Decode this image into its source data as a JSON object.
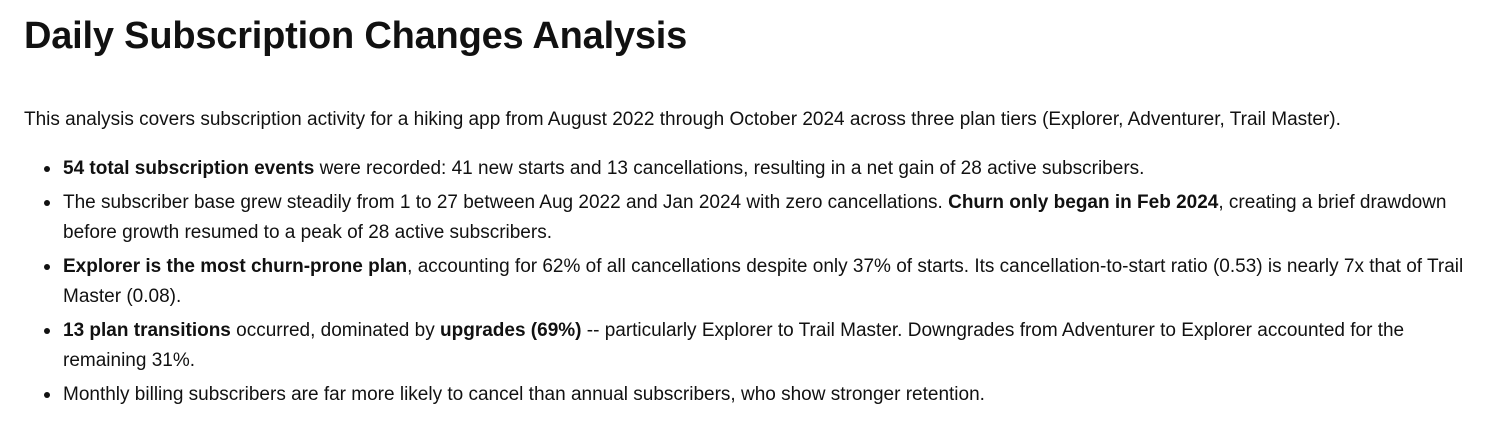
{
  "document": {
    "title": "Daily Subscription Changes Analysis",
    "intro": "This analysis covers subscription activity for a hiking app from August 2022 through October 2024 across three plan tiers (Explorer, Adventurer, Trail Master).",
    "bullets": [
      {
        "bold1": "54 total subscription events",
        "text1": " were recorded: 41 new starts and 13 cancellations, resulting in a net gain of 28 active subscribers."
      },
      {
        "text1": "The subscriber base grew steadily from 1 to 27 between Aug 2022 and Jan 2024 with zero cancellations. ",
        "bold1": "Churn only began in Feb 2024",
        "text2": ", creating a brief drawdown before growth resumed to a peak of 28 active subscribers."
      },
      {
        "bold1": "Explorer is the most churn-prone plan",
        "text1": ", accounting for 62% of all cancellations despite only 37% of starts. Its cancellation-to-start ratio (0.53) is nearly 7x that of Trail Master (0.08)."
      },
      {
        "bold1": "13 plan transitions",
        "text1": " occurred, dominated by ",
        "bold2": "upgrades (69%)",
        "text2": " -- particularly Explorer to Trail Master. Downgrades from Adventurer to Explorer accounted for the remaining 31%."
      },
      {
        "text1": "Monthly billing subscribers are far more likely to cancel than annual subscribers, who show stronger retention."
      }
    ]
  }
}
